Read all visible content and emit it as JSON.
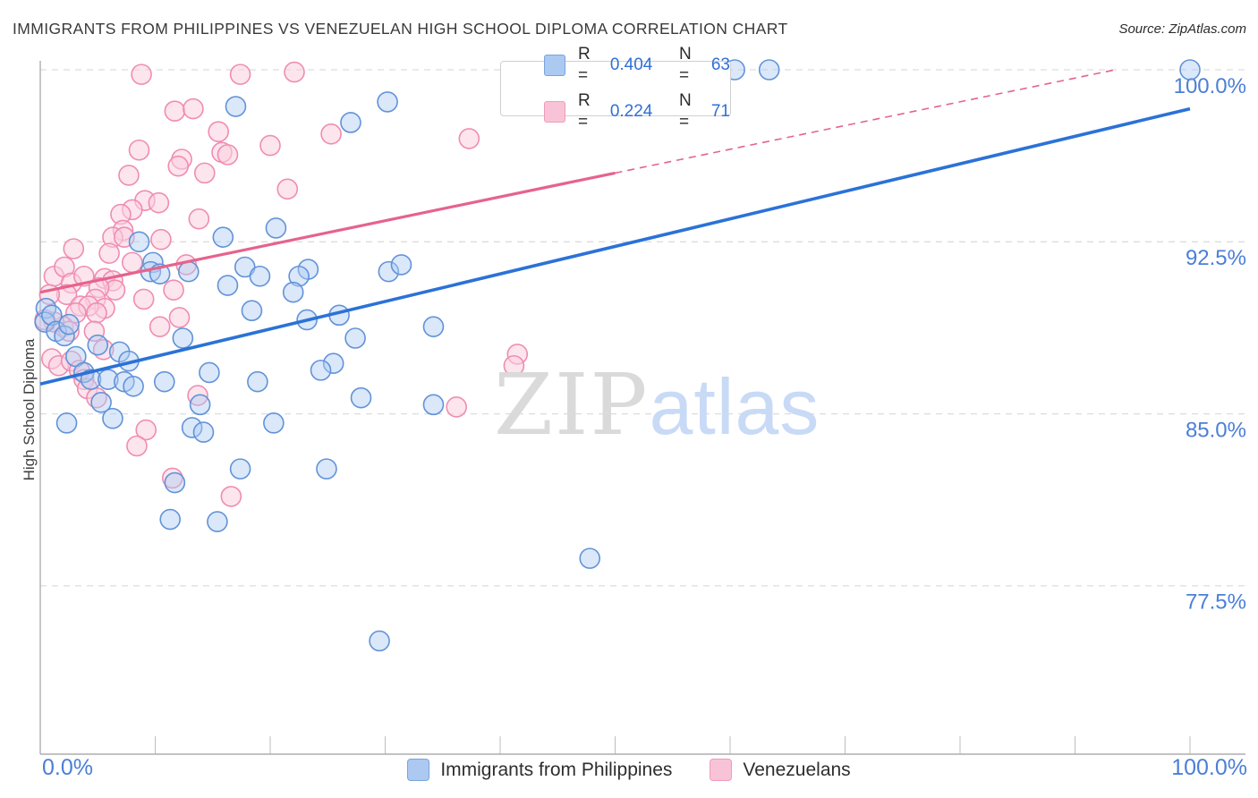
{
  "title": "IMMIGRANTS FROM PHILIPPINES VS VENEZUELAN HIGH SCHOOL DIPLOMA CORRELATION CHART",
  "source": "Source: ZipAtlas.com",
  "y_axis_label": "High School Diploma",
  "watermark": {
    "part1": "ZIP",
    "part2": "atlas"
  },
  "legend_box": {
    "rows": [
      {
        "series": "Immigrants from Philippines",
        "r_label": "R =",
        "r_value": "0.404",
        "n_label": "N =",
        "n_value": "63"
      },
      {
        "series": "Venezuelans",
        "r_label": "R =",
        "r_value": "0.224",
        "n_label": "N =",
        "n_value": "71"
      }
    ]
  },
  "bottom_legend": {
    "items": [
      {
        "label": "Immigrants from Philippines",
        "color": "#abc9f1"
      },
      {
        "label": "Venezuelans",
        "color": "#f9c3d7"
      }
    ]
  },
  "colors": {
    "blue_stroke": "#6292d8",
    "blue_fill": "rgba(174,205,244,0.45)",
    "pink_stroke": "#f08cb1",
    "pink_fill": "rgba(250,208,223,0.55)",
    "blue_trend": "#2b72d7",
    "pink_trend": "#e5638d",
    "grid": "#dcdcdc",
    "axis": "#adadad",
    "tick_text": "#4b7fd6"
  },
  "chart_data": {
    "type": "scatter",
    "title": "Immigrants from Philippines vs Venezuelan High School Diploma correlation",
    "xlabel": "Immigrants from Philippines (%)",
    "ylabel": "High School Diploma",
    "x_axis": {
      "min": 0,
      "max": 100,
      "ticks": [
        0,
        10,
        20,
        30,
        40,
        50,
        60,
        70,
        80,
        90,
        100
      ],
      "labels": [
        {
          "value": 0,
          "label": "0.0%"
        },
        {
          "value": 100,
          "label": "100.0%"
        }
      ]
    },
    "y_axis": {
      "min": 70,
      "max": 101,
      "gridlines": [
        {
          "value": 100,
          "label": "100.0%"
        },
        {
          "value": 92.5,
          "label": "92.5%"
        },
        {
          "value": 85,
          "label": "85.0%"
        },
        {
          "value": 77.5,
          "label": "77.5%"
        }
      ]
    },
    "series": [
      {
        "name": "Immigrants from Philippines",
        "R": 0.404,
        "N": 63,
        "points": [
          [
            17.0,
            98.4
          ],
          [
            30.2,
            98.6
          ],
          [
            27.0,
            97.7
          ],
          [
            60.4,
            100.0
          ],
          [
            63.4,
            100.0
          ],
          [
            100.0,
            100.0
          ],
          [
            20.5,
            93.1
          ],
          [
            15.9,
            92.7
          ],
          [
            8.6,
            92.5
          ],
          [
            9.8,
            91.6
          ],
          [
            9.6,
            91.2
          ],
          [
            10.4,
            91.1
          ],
          [
            12.9,
            91.2
          ],
          [
            17.8,
            91.4
          ],
          [
            19.1,
            91.0
          ],
          [
            16.3,
            90.6
          ],
          [
            23.3,
            91.3
          ],
          [
            22.5,
            91.0
          ],
          [
            30.3,
            91.2
          ],
          [
            31.4,
            91.5
          ],
          [
            22.0,
            90.3
          ],
          [
            18.4,
            89.5
          ],
          [
            23.2,
            89.1
          ],
          [
            26.0,
            89.3
          ],
          [
            0.5,
            89.6
          ],
          [
            0.4,
            89.0
          ],
          [
            1.0,
            89.3
          ],
          [
            1.4,
            88.6
          ],
          [
            2.1,
            88.4
          ],
          [
            2.5,
            88.9
          ],
          [
            12.4,
            88.3
          ],
          [
            27.4,
            88.3
          ],
          [
            34.2,
            88.8
          ],
          [
            6.9,
            87.7
          ],
          [
            7.7,
            87.3
          ],
          [
            3.1,
            87.5
          ],
          [
            25.5,
            87.2
          ],
          [
            24.4,
            86.9
          ],
          [
            3.8,
            86.8
          ],
          [
            4.4,
            86.5
          ],
          [
            5.9,
            86.5
          ],
          [
            5.0,
            88.0
          ],
          [
            7.3,
            86.4
          ],
          [
            8.1,
            86.2
          ],
          [
            10.8,
            86.4
          ],
          [
            14.7,
            86.8
          ],
          [
            18.9,
            86.4
          ],
          [
            27.9,
            85.7
          ],
          [
            34.2,
            85.4
          ],
          [
            13.9,
            85.4
          ],
          [
            5.3,
            85.5
          ],
          [
            2.3,
            84.6
          ],
          [
            6.3,
            84.8
          ],
          [
            13.2,
            84.4
          ],
          [
            14.2,
            84.2
          ],
          [
            20.3,
            84.6
          ],
          [
            17.4,
            82.6
          ],
          [
            24.9,
            82.6
          ],
          [
            11.7,
            82.0
          ],
          [
            11.3,
            80.4
          ],
          [
            15.4,
            80.3
          ],
          [
            47.8,
            78.7
          ],
          [
            29.5,
            75.1
          ]
        ]
      },
      {
        "name": "Venezuelans",
        "R": 0.224,
        "N": 71,
        "points": [
          [
            8.8,
            99.8
          ],
          [
            17.4,
            99.8
          ],
          [
            22.1,
            99.9
          ],
          [
            11.7,
            98.2
          ],
          [
            13.3,
            98.3
          ],
          [
            15.5,
            97.3
          ],
          [
            25.3,
            97.2
          ],
          [
            37.3,
            97.0
          ],
          [
            8.6,
            96.5
          ],
          [
            15.8,
            96.4
          ],
          [
            16.3,
            96.3
          ],
          [
            20.0,
            96.7
          ],
          [
            12.3,
            96.1
          ],
          [
            12.0,
            95.8
          ],
          [
            7.7,
            95.4
          ],
          [
            14.3,
            95.5
          ],
          [
            21.5,
            94.8
          ],
          [
            9.1,
            94.3
          ],
          [
            10.3,
            94.2
          ],
          [
            8.0,
            93.9
          ],
          [
            7.0,
            93.7
          ],
          [
            13.8,
            93.5
          ],
          [
            7.2,
            93.0
          ],
          [
            6.3,
            92.7
          ],
          [
            7.3,
            92.7
          ],
          [
            10.5,
            92.6
          ],
          [
            2.9,
            92.2
          ],
          [
            8.0,
            91.6
          ],
          [
            12.7,
            91.5
          ],
          [
            1.2,
            91.0
          ],
          [
            2.1,
            91.4
          ],
          [
            2.7,
            90.7
          ],
          [
            3.8,
            91.0
          ],
          [
            5.6,
            90.9
          ],
          [
            6.3,
            90.8
          ],
          [
            6.5,
            90.4
          ],
          [
            5.1,
            90.5
          ],
          [
            2.3,
            90.2
          ],
          [
            0.8,
            90.2
          ],
          [
            4.8,
            90.0
          ],
          [
            11.6,
            90.4
          ],
          [
            6.0,
            92.0
          ],
          [
            9.0,
            90.0
          ],
          [
            5.6,
            89.6
          ],
          [
            3.5,
            89.7
          ],
          [
            4.2,
            89.7
          ],
          [
            4.9,
            89.4
          ],
          [
            3.1,
            89.4
          ],
          [
            12.1,
            89.2
          ],
          [
            10.4,
            88.8
          ],
          [
            4.7,
            88.6
          ],
          [
            2.0,
            88.8
          ],
          [
            1.2,
            89.0
          ],
          [
            0.4,
            89.1
          ],
          [
            2.5,
            88.6
          ],
          [
            5.5,
            87.8
          ],
          [
            41.5,
            87.6
          ],
          [
            41.2,
            87.1
          ],
          [
            1.0,
            87.4
          ],
          [
            1.6,
            87.1
          ],
          [
            2.7,
            87.3
          ],
          [
            3.4,
            86.9
          ],
          [
            3.8,
            86.5
          ],
          [
            4.1,
            86.1
          ],
          [
            4.9,
            85.7
          ],
          [
            13.7,
            85.8
          ],
          [
            36.2,
            85.3
          ],
          [
            9.2,
            84.3
          ],
          [
            8.4,
            83.6
          ],
          [
            11.5,
            82.2
          ],
          [
            16.6,
            81.4
          ]
        ]
      }
    ],
    "trend_lines": [
      {
        "series": "Immigrants from Philippines",
        "style": "solid",
        "from": [
          0,
          86.3
        ],
        "to": [
          100,
          98.3
        ]
      },
      {
        "series": "Venezuelans",
        "style": "solid",
        "from": [
          0,
          90.3
        ],
        "to": [
          50,
          95.5
        ]
      },
      {
        "series": "Venezuelans",
        "style": "dashed",
        "from": [
          50,
          95.5
        ],
        "to": [
          93.5,
          100.0
        ]
      }
    ],
    "legend_position": "top-center",
    "grid": "horizontal-dashed"
  }
}
